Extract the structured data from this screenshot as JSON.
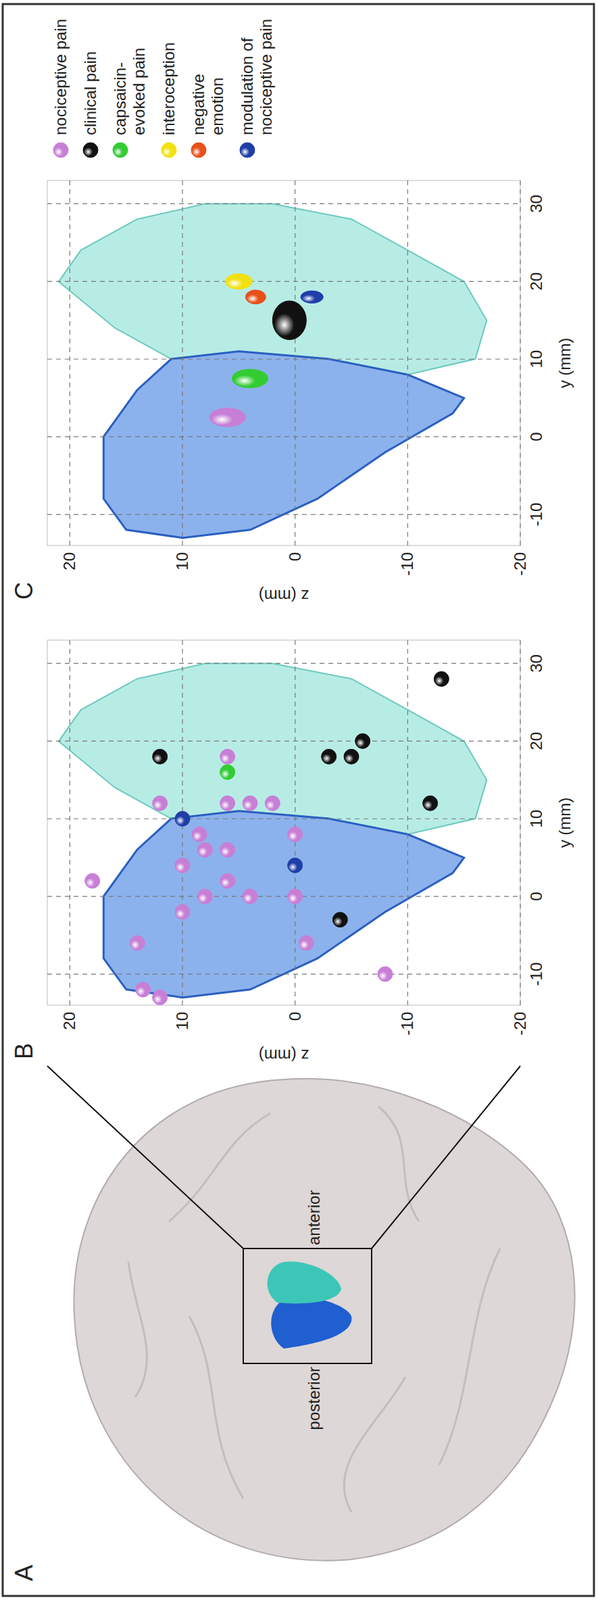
{
  "panel_a": {
    "panel": "A",
    "region_labels": [
      "posterior",
      "anterior"
    ]
  },
  "chart_data": [
    {
      "type": "scatter",
      "panel": "B",
      "x_label": "y (mm)",
      "y_label": "z (mm)",
      "xlim": [
        -14,
        33
      ],
      "ylim": [
        -20,
        22
      ],
      "xticks": [
        -10,
        0,
        10,
        20,
        30
      ],
      "yticks": [
        -20,
        -10,
        0,
        10,
        20
      ],
      "grid": true,
      "marker": "sphere",
      "series": [
        {
          "color": "#c77fd6",
          "x": [
            -13,
            -12,
            -6,
            2,
            -2,
            4,
            0,
            6,
            8,
            12,
            18,
            2,
            6,
            0,
            12,
            12,
            12,
            8,
            0,
            -6,
            -10
          ],
          "values": [
            12,
            13.5,
            14,
            18,
            10,
            10,
            8,
            8,
            8.5,
            12,
            6,
            6,
            6,
            4,
            6,
            4,
            2,
            0,
            0,
            -1,
            -8
          ]
        },
        {
          "color": "#1f3ea8",
          "x": [
            10,
            4
          ],
          "values": [
            10,
            0
          ]
        },
        {
          "color": "#33cc33",
          "x": [
            16
          ],
          "values": [
            6
          ]
        },
        {
          "color": "#111111",
          "x": [
            18,
            -3,
            18,
            18,
            20,
            12,
            28
          ],
          "values": [
            12,
            -4,
            -3,
            -5,
            -6,
            -12,
            -13
          ]
        }
      ]
    },
    {
      "type": "ellipse",
      "panel": "C",
      "x_label": "y (mm)",
      "y_label": "z (mm)",
      "xlim": [
        -14,
        33
      ],
      "ylim": [
        -20,
        22
      ],
      "xticks": [
        -10,
        0,
        10,
        20,
        30
      ],
      "yticks": [
        -20,
        -10,
        0,
        10,
        20
      ],
      "grid": true,
      "marker": "sphere",
      "legend": "right",
      "series": [
        {
          "name": "nociceptive pain",
          "color": "#c77fd6",
          "x": [
            2.5
          ],
          "values": [
            6
          ],
          "x_err": [
            1.2
          ],
          "y_err": [
            1.6
          ]
        },
        {
          "name": "clinical pain",
          "color": "#111111",
          "x": [
            15
          ],
          "values": [
            0.5
          ],
          "x_err": [
            2.5
          ],
          "y_err": [
            1.5
          ]
        },
        {
          "name": "capsaicin-evoked pain",
          "color": "#33cc33",
          "x": [
            7.5
          ],
          "values": [
            4
          ],
          "x_err": [
            1.2
          ],
          "y_err": [
            1.6
          ]
        },
        {
          "name": "interoception",
          "color": "#f2e010",
          "x": [
            20
          ],
          "values": [
            5
          ],
          "x_err": [
            1.0
          ],
          "y_err": [
            1.2
          ]
        },
        {
          "name": "negative emotion",
          "color": "#e8501a",
          "x": [
            18
          ],
          "values": [
            3.5
          ],
          "x_err": [
            0.9
          ],
          "y_err": [
            0.9
          ]
        },
        {
          "name": "modulation of nociceptive pain",
          "color": "#1f3ea8",
          "x": [
            18
          ],
          "values": [
            -1.5
          ],
          "x_err": [
            0.8
          ],
          "y_err": [
            1.0
          ]
        }
      ]
    }
  ]
}
